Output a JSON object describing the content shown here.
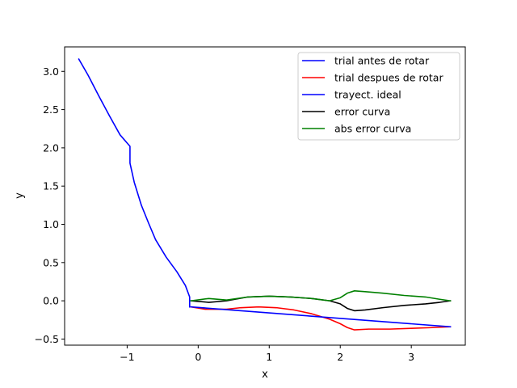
{
  "chart_data": {
    "type": "line",
    "title": "",
    "xlabel": "x",
    "ylabel": "y",
    "xlim": [
      -1.88,
      3.76
    ],
    "ylim": [
      -0.58,
      3.32
    ],
    "grid": false,
    "legend_position": "top-right",
    "x_ticks": [
      -1,
      0,
      1,
      2,
      3
    ],
    "x_tick_labels": [
      "−1",
      "0",
      "1",
      "2",
      "3"
    ],
    "y_ticks": [
      -0.5,
      0.0,
      0.5,
      1.0,
      1.5,
      2.0,
      2.5,
      3.0
    ],
    "y_tick_labels": [
      "−0.5",
      "0.0",
      "0.5",
      "1.0",
      "1.5",
      "2.0",
      "2.5",
      "3.0"
    ],
    "series": [
      {
        "name": "trial antes de rotar",
        "color": "#0000ff",
        "points": [
          [
            -1.68,
            3.16
          ],
          [
            -1.55,
            2.95
          ],
          [
            -1.4,
            2.68
          ],
          [
            -1.25,
            2.42
          ],
          [
            -1.1,
            2.17
          ],
          [
            -0.96,
            2.02
          ],
          [
            -0.96,
            1.96
          ],
          [
            -0.96,
            1.8
          ],
          [
            -0.9,
            1.55
          ],
          [
            -0.8,
            1.25
          ],
          [
            -0.7,
            1.02
          ],
          [
            -0.6,
            0.8
          ],
          [
            -0.45,
            0.57
          ],
          [
            -0.3,
            0.38
          ],
          [
            -0.18,
            0.2
          ],
          [
            -0.12,
            0.05
          ],
          [
            -0.12,
            -0.08
          ]
        ]
      },
      {
        "name": "trial despues de rotar",
        "color": "#ff0000",
        "points": [
          [
            -0.1,
            -0.08
          ],
          [
            0.1,
            -0.11
          ],
          [
            0.4,
            -0.11
          ],
          [
            0.6,
            -0.09
          ],
          [
            0.85,
            -0.08
          ],
          [
            1.1,
            -0.09
          ],
          [
            1.35,
            -0.12
          ],
          [
            1.6,
            -0.17
          ],
          [
            1.85,
            -0.24
          ],
          [
            2.0,
            -0.3
          ],
          [
            2.1,
            -0.35
          ],
          [
            2.2,
            -0.38
          ],
          [
            2.4,
            -0.37
          ],
          [
            2.7,
            -0.37
          ],
          [
            3.0,
            -0.36
          ],
          [
            3.3,
            -0.35
          ],
          [
            3.55,
            -0.34
          ]
        ]
      },
      {
        "name": "trayect. ideal",
        "color": "#0000ff",
        "points": [
          [
            -0.1,
            -0.08
          ],
          [
            3.55,
            -0.34
          ]
        ]
      },
      {
        "name": "error curva",
        "color": "#000000",
        "points": [
          [
            -0.1,
            0.0
          ],
          [
            0.15,
            -0.02
          ],
          [
            0.4,
            0.0
          ],
          [
            0.7,
            0.05
          ],
          [
            1.0,
            0.06
          ],
          [
            1.3,
            0.05
          ],
          [
            1.6,
            0.03
          ],
          [
            1.85,
            0.0
          ],
          [
            2.0,
            -0.04
          ],
          [
            2.1,
            -0.1
          ],
          [
            2.2,
            -0.13
          ],
          [
            2.35,
            -0.12
          ],
          [
            2.6,
            -0.09
          ],
          [
            2.9,
            -0.06
          ],
          [
            3.2,
            -0.04
          ],
          [
            3.4,
            -0.02
          ],
          [
            3.55,
            0.0
          ]
        ]
      },
      {
        "name": "abs error curva",
        "color": "#008000",
        "points": [
          [
            -0.1,
            0.0
          ],
          [
            0.15,
            0.03
          ],
          [
            0.4,
            0.01
          ],
          [
            0.7,
            0.05
          ],
          [
            1.0,
            0.06
          ],
          [
            1.3,
            0.05
          ],
          [
            1.6,
            0.03
          ],
          [
            1.85,
            0.0
          ],
          [
            2.0,
            0.04
          ],
          [
            2.1,
            0.1
          ],
          [
            2.2,
            0.13
          ],
          [
            2.35,
            0.12
          ],
          [
            2.6,
            0.1
          ],
          [
            2.9,
            0.07
          ],
          [
            3.2,
            0.05
          ],
          [
            3.4,
            0.02
          ],
          [
            3.55,
            0.0
          ]
        ]
      }
    ]
  }
}
